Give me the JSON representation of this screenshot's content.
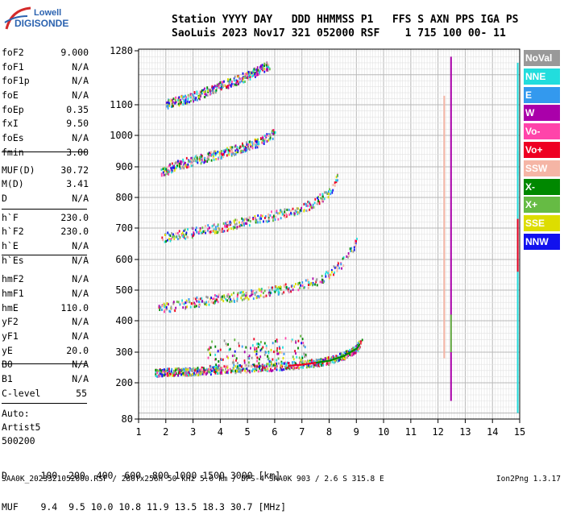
{
  "logo": {
    "line1": "Lowell",
    "line2": "DIGISONDE"
  },
  "header": {
    "line1": "Station YYYY DAY   DDD HHMMSS P1   FFS S AXN PPS IGA PS",
    "line2": "SaoLuis 2023 Nov17 321 052000 RSF    1 715 100 00- 11"
  },
  "params": [
    {
      "k": "foF2",
      "v": "9.000"
    },
    {
      "k": "foF1",
      "v": "N/A"
    },
    {
      "k": "foF1p",
      "v": "N/A"
    },
    {
      "k": "foE",
      "v": "N/A"
    },
    {
      "k": "foEp",
      "v": "0.35"
    },
    {
      "k": "fxI",
      "v": "9.50"
    },
    {
      "k": "foEs",
      "v": "N/A"
    },
    {
      "k": "fmin",
      "v": "3.00"
    },
    {
      "k": "MUF(D)",
      "v": "30.72"
    },
    {
      "k": "M(D)",
      "v": "3.41"
    },
    {
      "k": "D",
      "v": "N/A"
    },
    {
      "k": "h`F",
      "v": "230.0"
    },
    {
      "k": "h`F2",
      "v": "230.0"
    },
    {
      "k": "h`E",
      "v": "N/A"
    },
    {
      "k": "h`Es",
      "v": "N/A"
    },
    {
      "k": "hmF2",
      "v": "N/A"
    },
    {
      "k": "hmF1",
      "v": "N/A"
    },
    {
      "k": "hmE",
      "v": "110.0"
    },
    {
      "k": "yF2",
      "v": "N/A"
    },
    {
      "k": "yF1",
      "v": "N/A"
    },
    {
      "k": "yE",
      "v": "20.0"
    },
    {
      "k": "B0",
      "v": "N/A"
    },
    {
      "k": "B1",
      "v": "N/A"
    }
  ],
  "clevel": {
    "k": "C-level",
    "v": "55"
  },
  "auto": [
    "Auto:",
    "Artist5",
    "500200"
  ],
  "muf_table": {
    "d_row": "D      100  200  400  600  800 1000 1500 3000 [km]",
    "m_row": "MUF    9.4  9.5 10.0 10.8 11.9 13.5 18.3 30.7 [MHz]"
  },
  "footer_left": "SAA0K_2023321052000.RSF / 280fx256h 50 kHz 5.0 km / DPS-4 SAA0K 903 / 2.6 S 315.8 E",
  "footer_right": "Ion2Png 1.3.17",
  "legend": [
    {
      "label": "NoVal",
      "color": "#999999"
    },
    {
      "label": "NNE",
      "color": "#22dddd"
    },
    {
      "label": "E",
      "color": "#3399ee"
    },
    {
      "label": "W",
      "color": "#aa00aa"
    },
    {
      "label": "Vo-",
      "color": "#ff44aa"
    },
    {
      "label": "Vo+",
      "color": "#ee0022"
    },
    {
      "label": "SSW",
      "color": "#f5b5a5"
    },
    {
      "label": "X-",
      "color": "#008800"
    },
    {
      "label": "X+",
      "color": "#66bb44"
    },
    {
      "label": "SSE",
      "color": "#dddd00"
    },
    {
      "label": "NNW",
      "color": "#1111ee"
    }
  ],
  "chart_data": {
    "type": "scatter",
    "x_ticks": [
      1,
      2,
      3,
      4,
      5,
      6,
      7,
      8,
      9,
      10,
      11,
      12,
      13,
      14,
      15
    ],
    "y_ticks": [
      80,
      200,
      300,
      400,
      500,
      600,
      700,
      800,
      900,
      1000,
      1100,
      1280
    ],
    "xlim": [
      1,
      15
    ],
    "ylim": [
      80,
      1280
    ],
    "grid": true,
    "series": [
      {
        "x": [
          1.6,
          2.0,
          3.0,
          4.0,
          5.0,
          6.0,
          7.0,
          8.0,
          8.5,
          9.0,
          9.2
        ],
        "y": [
          235,
          238,
          240,
          245,
          250,
          255,
          262,
          275,
          290,
          315,
          345
        ]
      },
      {
        "x": [
          1.7,
          2.5,
          3.5,
          4.5,
          5.5,
          6.5,
          7.5,
          8.0,
          8.5,
          9.0
        ],
        "y": [
          440,
          455,
          470,
          480,
          495,
          510,
          530,
          555,
          595,
          660
        ]
      },
      {
        "x": [
          1.8,
          3.0,
          4.0,
          5.0,
          6.0,
          7.0,
          7.5,
          8.0,
          8.3
        ],
        "y": [
          670,
          690,
          705,
          725,
          745,
          765,
          790,
          820,
          870
        ]
      },
      {
        "x": [
          1.8,
          2.5,
          3.5,
          4.5,
          5.5,
          6.0
        ],
        "y": [
          885,
          910,
          935,
          955,
          985,
          1010
        ]
      },
      {
        "x": [
          2.0,
          3.0,
          4.0,
          5.0,
          5.8
        ],
        "y": [
          1105,
          1130,
          1165,
          1200,
          1235
        ]
      }
    ]
  }
}
